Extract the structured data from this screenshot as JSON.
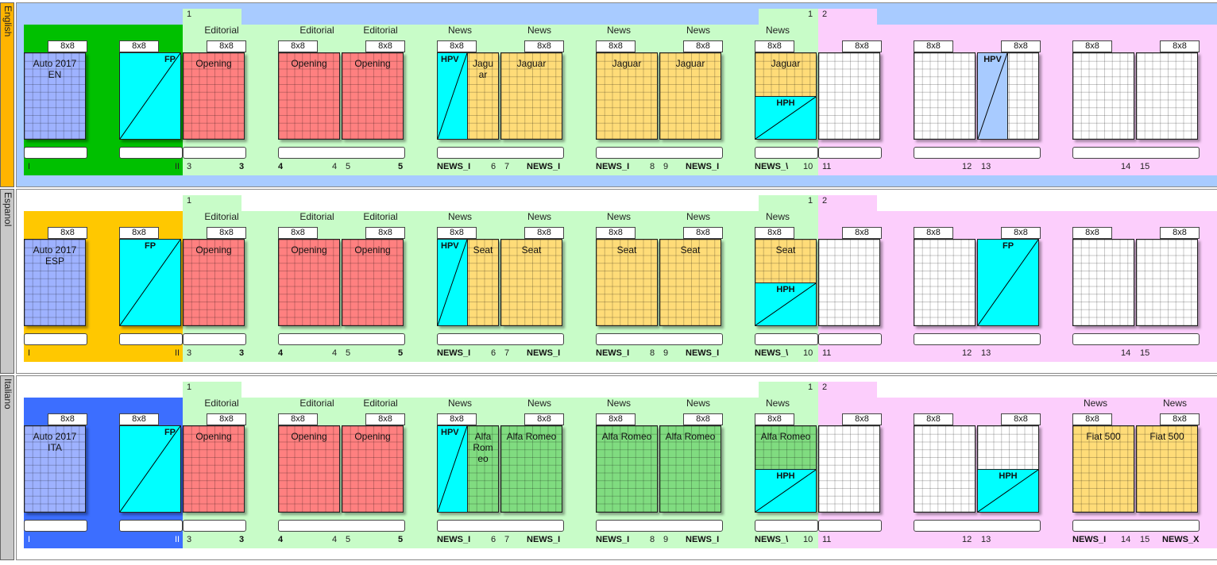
{
  "colors": {
    "cover_en": "#00c000",
    "cover_es": "#ffc800",
    "cover_it": "#3c6eff",
    "tab_en": "#ffb400",
    "tab_gray": "#c8c8c8",
    "frame_en": "#a8cbff",
    "green": "#c8fcc8",
    "pink": "#fccefc",
    "opening": "#ff8080",
    "story_yellow": "#ffdc78",
    "story_green": "#80dc80",
    "ad_cyan": "#00ffff",
    "ad_blue": "#a8cbff",
    "cover_page": "#9eb2ff"
  },
  "common": {
    "template": "8x8",
    "roman_i": "I",
    "roman_ii": "II",
    "opening": "Opening",
    "editorial": "Editorial",
    "news": "News",
    "fp": "FP",
    "hpv": "HPV",
    "hph": "HPH",
    "slug_news": "NEWS_I",
    "slug_news_v": "NEWS_\\",
    "slug_news_x": "NEWS_X",
    "n1": "1",
    "n2": "2",
    "n3": "3",
    "n4": "4",
    "n5": "5",
    "n6": "6",
    "n7": "7",
    "n8": "8",
    "n9": "9",
    "n10": "10",
    "n11": "11",
    "n12": "12",
    "n13": "13",
    "n14": "14",
    "n15": "15"
  },
  "editions": [
    {
      "name": "English",
      "cover_line1": "Auto 2017",
      "cover_line2": "EN",
      "story": "Jaguar",
      "story_split1": "Jagu",
      "story_split2": "ar"
    },
    {
      "name": "Espanol",
      "cover_line1": "Auto 2017",
      "cover_line2": "ESP",
      "story": "Seat",
      "story_split1": "Seat"
    },
    {
      "name": "Italiano",
      "cover_line1": "Auto 2017",
      "cover_line2": "ITA",
      "story": "Alfa Romeo",
      "story_split1": "Alfa",
      "story_split2": "Rom",
      "story_split3": "eo",
      "story_extra": "Fiat 500"
    }
  ]
}
